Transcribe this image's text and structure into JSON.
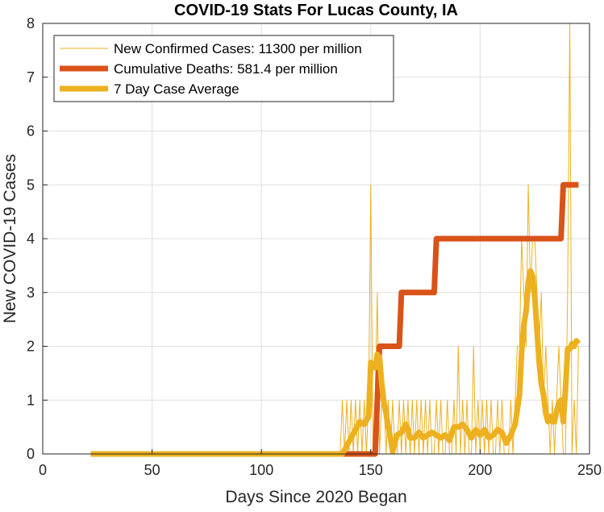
{
  "chart_data": {
    "type": "line",
    "title": "COVID-19 Stats For Lucas County, IA",
    "xlabel": "Days Since 2020 Began",
    "ylabel": "New COVID-19 Cases",
    "xlim": [
      0,
      250
    ],
    "ylim": [
      0,
      8
    ],
    "xticks": [
      0,
      50,
      100,
      150,
      200,
      250
    ],
    "yticks": [
      0,
      1,
      2,
      3,
      4,
      5,
      6,
      7,
      8
    ],
    "grid": true,
    "legend_position": "top-left",
    "series": [
      {
        "name": "New Confirmed Cases: 11300 per million",
        "color": "#EDB120",
        "style": "thin",
        "points": [
          [
            22,
            0
          ],
          [
            136,
            0
          ],
          [
            137,
            1
          ],
          [
            138,
            0
          ],
          [
            139,
            1
          ],
          [
            140,
            0
          ],
          [
            141,
            1
          ],
          [
            142,
            0
          ],
          [
            143,
            1
          ],
          [
            144,
            0
          ],
          [
            145,
            1
          ],
          [
            146,
            0
          ],
          [
            147,
            1
          ],
          [
            148,
            0
          ],
          [
            149,
            1
          ],
          [
            150,
            5
          ],
          [
            151,
            0
          ],
          [
            152,
            1
          ],
          [
            153,
            3
          ],
          [
            154,
            0
          ],
          [
            155,
            1
          ],
          [
            156,
            1
          ],
          [
            157,
            0
          ],
          [
            158,
            1
          ],
          [
            159,
            0
          ],
          [
            160,
            1
          ],
          [
            161,
            0
          ],
          [
            162,
            0
          ],
          [
            163,
            1
          ],
          [
            164,
            0
          ],
          [
            165,
            1
          ],
          [
            166,
            0
          ],
          [
            167,
            1
          ],
          [
            168,
            0
          ],
          [
            169,
            1
          ],
          [
            170,
            0
          ],
          [
            171,
            1
          ],
          [
            172,
            0
          ],
          [
            173,
            1
          ],
          [
            174,
            0
          ],
          [
            175,
            1
          ],
          [
            176,
            0
          ],
          [
            177,
            1
          ],
          [
            178,
            0
          ],
          [
            179,
            0
          ],
          [
            180,
            1
          ],
          [
            181,
            0
          ],
          [
            182,
            1
          ],
          [
            183,
            0
          ],
          [
            184,
            0
          ],
          [
            185,
            1
          ],
          [
            186,
            0
          ],
          [
            187,
            0
          ],
          [
            188,
            1
          ],
          [
            189,
            0
          ],
          [
            190,
            2
          ],
          [
            191,
            0
          ],
          [
            192,
            1
          ],
          [
            193,
            0
          ],
          [
            194,
            1
          ],
          [
            195,
            0
          ],
          [
            196,
            0
          ],
          [
            197,
            2
          ],
          [
            198,
            0
          ],
          [
            199,
            1
          ],
          [
            200,
            0
          ],
          [
            201,
            1
          ],
          [
            202,
            0
          ],
          [
            203,
            1
          ],
          [
            204,
            0
          ],
          [
            205,
            1
          ],
          [
            206,
            0
          ],
          [
            207,
            0
          ],
          [
            208,
            1
          ],
          [
            209,
            0
          ],
          [
            210,
            1
          ],
          [
            211,
            0
          ],
          [
            212,
            0
          ],
          [
            213,
            0
          ],
          [
            214,
            1
          ],
          [
            215,
            0
          ],
          [
            216,
            1
          ],
          [
            217,
            2
          ],
          [
            218,
            2
          ],
          [
            219,
            4
          ],
          [
            220,
            3
          ],
          [
            221,
            2
          ],
          [
            222,
            5
          ],
          [
            223,
            3
          ],
          [
            224,
            4
          ],
          [
            225,
            4
          ],
          [
            226,
            3
          ],
          [
            227,
            2
          ],
          [
            228,
            3
          ],
          [
            229,
            1
          ],
          [
            230,
            2
          ],
          [
            231,
            1
          ],
          [
            232,
            0
          ],
          [
            233,
            1
          ],
          [
            234,
            0
          ],
          [
            235,
            1
          ],
          [
            236,
            2
          ],
          [
            237,
            1
          ],
          [
            238,
            0
          ],
          [
            239,
            0
          ],
          [
            240,
            3
          ],
          [
            241,
            8
          ],
          [
            242,
            0
          ],
          [
            243,
            1
          ],
          [
            244,
            0
          ],
          [
            245,
            2
          ]
        ]
      },
      {
        "name": "Cumulative Deaths: 581.4 per million",
        "color": "#D95319",
        "style": "thick",
        "points": [
          [
            22,
            0
          ],
          [
            152,
            0
          ],
          [
            154,
            2
          ],
          [
            163,
            2
          ],
          [
            164,
            3
          ],
          [
            179,
            3
          ],
          [
            180,
            4
          ],
          [
            237,
            4
          ],
          [
            238,
            5
          ],
          [
            245,
            5
          ]
        ]
      },
      {
        "name": "7 Day Case Average",
        "color": "#EDB120",
        "style": "thick",
        "points": [
          [
            22,
            0
          ],
          [
            137,
            0
          ],
          [
            139,
            0.15
          ],
          [
            141,
            0.3
          ],
          [
            143,
            0.45
          ],
          [
            145,
            0.6
          ],
          [
            147,
            0.55
          ],
          [
            149,
            0.7
          ],
          [
            150,
            1.7
          ],
          [
            151,
            1.65
          ],
          [
            152,
            1.6
          ],
          [
            153,
            1.85
          ],
          [
            154,
            1.8
          ],
          [
            155,
            1.3
          ],
          [
            156,
            0.95
          ],
          [
            157,
            0.75
          ],
          [
            158,
            0.5
          ],
          [
            159,
            0.3
          ],
          [
            160,
            0.05
          ],
          [
            161,
            0.2
          ],
          [
            162,
            0.35
          ],
          [
            164,
            0.4
          ],
          [
            166,
            0.55
          ],
          [
            167,
            0.45
          ],
          [
            168,
            0.3
          ],
          [
            170,
            0.3
          ],
          [
            172,
            0.4
          ],
          [
            174,
            0.3
          ],
          [
            176,
            0.35
          ],
          [
            178,
            0.4
          ],
          [
            180,
            0.35
          ],
          [
            182,
            0.3
          ],
          [
            184,
            0.35
          ],
          [
            186,
            0.25
          ],
          [
            188,
            0.5
          ],
          [
            190,
            0.5
          ],
          [
            192,
            0.55
          ],
          [
            194,
            0.45
          ],
          [
            196,
            0.3
          ],
          [
            198,
            0.45
          ],
          [
            200,
            0.35
          ],
          [
            202,
            0.45
          ],
          [
            204,
            0.3
          ],
          [
            206,
            0.35
          ],
          [
            208,
            0.45
          ],
          [
            210,
            0.4
          ],
          [
            212,
            0.2
          ],
          [
            214,
            0.35
          ],
          [
            216,
            0.55
          ],
          [
            218,
            1.1
          ],
          [
            219,
            1.9
          ],
          [
            220,
            2.4
          ],
          [
            221,
            2.65
          ],
          [
            222,
            3.2
          ],
          [
            223,
            3.4
          ],
          [
            224,
            3.3
          ],
          [
            225,
            2.9
          ],
          [
            226,
            2.3
          ],
          [
            227,
            1.7
          ],
          [
            228,
            1.3
          ],
          [
            229,
            1.1
          ],
          [
            230,
            0.75
          ],
          [
            231,
            0.6
          ],
          [
            232,
            0.7
          ],
          [
            233,
            0.6
          ],
          [
            234,
            0.6
          ],
          [
            235,
            0.8
          ],
          [
            236,
            0.95
          ],
          [
            237,
            1.0
          ],
          [
            238,
            0.6
          ],
          [
            239,
            1.2
          ],
          [
            240,
            1.95
          ],
          [
            241,
            1.95
          ],
          [
            242,
            2.05
          ],
          [
            243,
            2.0
          ],
          [
            244,
            2.1
          ],
          [
            245,
            2.05
          ]
        ]
      }
    ]
  }
}
